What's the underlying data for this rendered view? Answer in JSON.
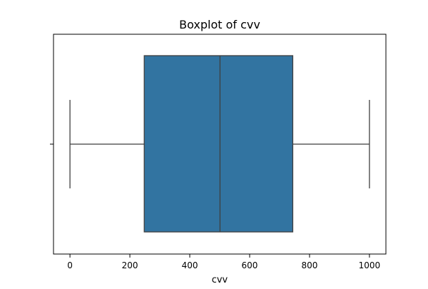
{
  "chart_data": {
    "type": "boxplot",
    "title": "Boxplot of cvv",
    "xlabel": "cvv",
    "ylabel": "",
    "orientation": "horizontal",
    "xlim": [
      -55,
      1055
    ],
    "x_ticks": [
      0,
      200,
      400,
      600,
      800,
      1000
    ],
    "x_tick_labels": [
      "0",
      "200",
      "400",
      "600",
      "800",
      "1000"
    ],
    "grid": false,
    "box": {
      "whisker_low": 0,
      "q1": 248,
      "median": 501,
      "q3": 744,
      "whisker_high": 1000
    },
    "colors": {
      "box_fill": "#3274a1",
      "lines": "#3f3f3f",
      "axes": "#000000"
    }
  }
}
